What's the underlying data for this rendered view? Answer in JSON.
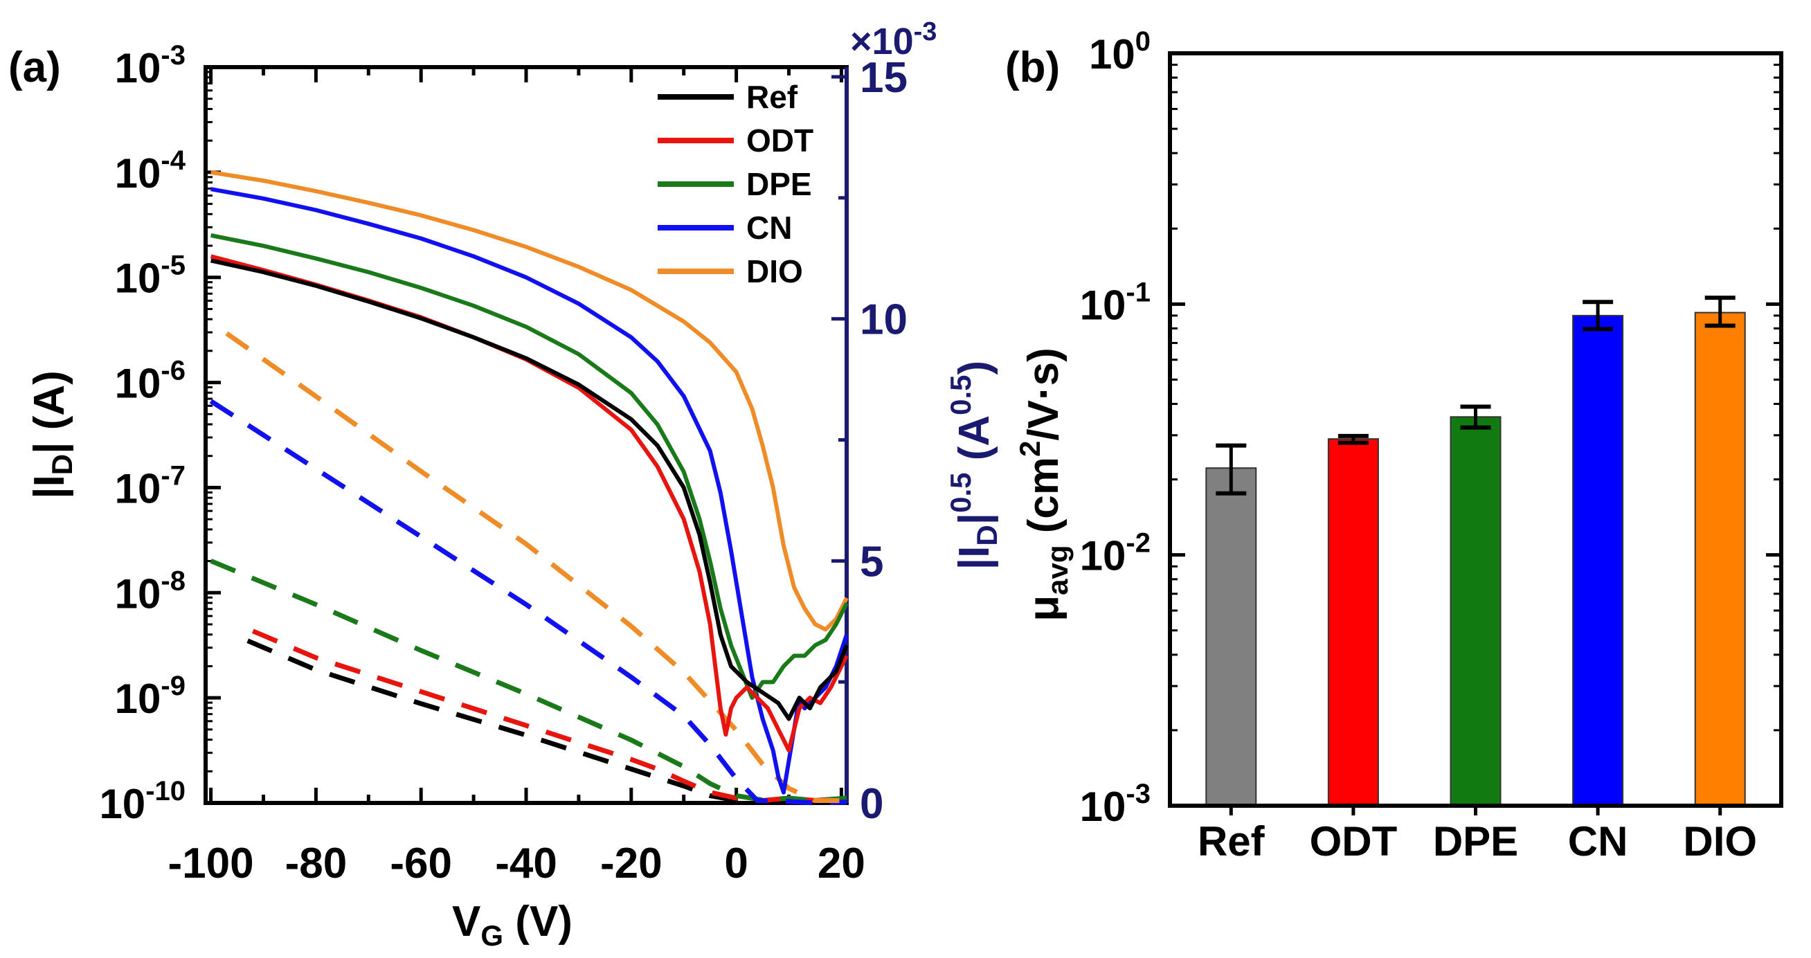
{
  "chart_data": [
    {
      "panel": "(a)",
      "type": "line",
      "xlabel": "V",
      "xlabel_sub": "G",
      "xlabel_unit": "(V)",
      "xlim": [
        -101,
        21
      ],
      "xticks": [
        {
          "v": -100,
          "label": "-100"
        },
        {
          "v": -80,
          "label": "-80"
        },
        {
          "v": -60,
          "label": "-60"
        },
        {
          "v": -40,
          "label": "-40"
        },
        {
          "v": -20,
          "label": "-20"
        },
        {
          "v": 0,
          "label": "0"
        },
        {
          "v": 20,
          "label": "20"
        }
      ],
      "ylabel_left": {
        "pre": "|I",
        "sub": "D",
        "post": "| (A)"
      },
      "ylim_left_log10": [
        -10,
        -3
      ],
      "yticks_left": [
        {
          "b": "10",
          "e": "-3",
          "v": -3
        },
        {
          "b": "10",
          "e": "-4",
          "v": -4
        },
        {
          "b": "10",
          "e": "-5",
          "v": -5
        },
        {
          "b": "10",
          "e": "-6",
          "v": -6
        },
        {
          "b": "10",
          "e": "-7",
          "v": -7
        },
        {
          "b": "10",
          "e": "-8",
          "v": -8
        },
        {
          "b": "10",
          "e": "-9",
          "v": -9
        },
        {
          "b": "10",
          "e": "-10",
          "v": -10
        }
      ],
      "ylabel_right": {
        "pre": "|I",
        "sub": "D",
        "post": "|",
        "sup": "0.5",
        "unit_pre": " (A",
        "unit_sup": "0.5",
        "unit_post": ")"
      },
      "right_multiplier": {
        "base": "×10",
        "exp": "-3"
      },
      "ylim_right": [
        0,
        15.2
      ],
      "yticks_right": [
        {
          "v": 0,
          "label": "0"
        },
        {
          "v": 5,
          "label": "5"
        },
        {
          "v": 10,
          "label": "10"
        },
        {
          "v": 15,
          "label": "15"
        }
      ],
      "legend_position": "top-right",
      "series": [
        {
          "name": "Ref",
          "color": "#000000",
          "transfer_log10": [
            [
              -100,
              -4.84
            ],
            [
              -90,
              -4.95
            ],
            [
              -80,
              -5.08
            ],
            [
              -70,
              -5.23
            ],
            [
              -60,
              -5.39
            ],
            [
              -50,
              -5.57
            ],
            [
              -40,
              -5.77
            ],
            [
              -30,
              -6.02
            ],
            [
              -20,
              -6.35
            ],
            [
              -15,
              -6.6
            ],
            [
              -10,
              -7.0
            ],
            [
              -7,
              -7.45
            ],
            [
              -5,
              -7.9
            ],
            [
              -3,
              -8.4
            ],
            [
              -1,
              -8.7
            ],
            [
              2,
              -8.85
            ],
            [
              5,
              -8.95
            ],
            [
              8,
              -9.05
            ],
            [
              10,
              -9.2
            ],
            [
              12,
              -9.0
            ],
            [
              14,
              -9.1
            ],
            [
              16,
              -8.9
            ],
            [
              19,
              -8.75
            ],
            [
              21,
              -8.5
            ]
          ],
          "sqrt_e3": [
            [
              -93,
              3.35
            ],
            [
              -80,
              2.75
            ],
            [
              -60,
              2.05
            ],
            [
              -40,
              1.4
            ],
            [
              -20,
              0.7
            ],
            [
              -10,
              0.35
            ],
            [
              -5,
              0.15
            ],
            [
              0,
              0.05
            ],
            [
              5,
              0.02
            ],
            [
              10,
              0.08
            ],
            [
              15,
              0.05
            ],
            [
              21,
              0.1
            ]
          ]
        },
        {
          "name": "ODT",
          "color": "#e8140e",
          "transfer_log10": [
            [
              -100,
              -4.8
            ],
            [
              -90,
              -4.93
            ],
            [
              -80,
              -5.07
            ],
            [
              -70,
              -5.22
            ],
            [
              -60,
              -5.38
            ],
            [
              -50,
              -5.57
            ],
            [
              -40,
              -5.78
            ],
            [
              -30,
              -6.05
            ],
            [
              -20,
              -6.45
            ],
            [
              -15,
              -6.8
            ],
            [
              -10,
              -7.3
            ],
            [
              -7,
              -7.8
            ],
            [
              -5,
              -8.3
            ],
            [
              -4,
              -8.7
            ],
            [
              -3,
              -9.1
            ],
            [
              -2,
              -9.35
            ],
            [
              -1,
              -9.1
            ],
            [
              0,
              -9.0
            ],
            [
              2,
              -8.9
            ],
            [
              4,
              -9.0
            ],
            [
              6,
              -9.1
            ],
            [
              8,
              -9.3
            ],
            [
              10,
              -9.5
            ],
            [
              12,
              -9.1
            ],
            [
              14,
              -9.0
            ],
            [
              16,
              -9.05
            ],
            [
              18,
              -8.9
            ],
            [
              21,
              -8.6
            ]
          ],
          "sqrt_e3": [
            [
              -92,
              3.55
            ],
            [
              -80,
              3.0
            ],
            [
              -60,
              2.3
            ],
            [
              -40,
              1.6
            ],
            [
              -20,
              0.9
            ],
            [
              -15,
              0.7
            ],
            [
              -10,
              0.45
            ],
            [
              -5,
              0.22
            ],
            [
              0,
              0.1
            ],
            [
              5,
              0.05
            ],
            [
              10,
              0.1
            ],
            [
              15,
              0.05
            ],
            [
              21,
              0.1
            ]
          ]
        },
        {
          "name": "DPE",
          "color": "#1a7a1a",
          "transfer_log10": [
            [
              -100,
              -4.6
            ],
            [
              -90,
              -4.7
            ],
            [
              -80,
              -4.82
            ],
            [
              -70,
              -4.95
            ],
            [
              -60,
              -5.1
            ],
            [
              -50,
              -5.27
            ],
            [
              -40,
              -5.47
            ],
            [
              -30,
              -5.73
            ],
            [
              -20,
              -6.1
            ],
            [
              -15,
              -6.4
            ],
            [
              -10,
              -6.85
            ],
            [
              -7,
              -7.3
            ],
            [
              -5,
              -7.7
            ],
            [
              -3,
              -8.15
            ],
            [
              -1,
              -8.5
            ],
            [
              1,
              -8.75
            ],
            [
              3,
              -9.0
            ],
            [
              5,
              -8.85
            ],
            [
              7,
              -8.85
            ],
            [
              9,
              -8.7
            ],
            [
              11,
              -8.6
            ],
            [
              13,
              -8.6
            ],
            [
              15,
              -8.5
            ],
            [
              17,
              -8.45
            ],
            [
              19,
              -8.3
            ],
            [
              21,
              -8.1
            ]
          ],
          "sqrt_e3": [
            [
              -100,
              5.0
            ],
            [
              -90,
              4.55
            ],
            [
              -80,
              4.1
            ],
            [
              -60,
              3.15
            ],
            [
              -40,
              2.25
            ],
            [
              -20,
              1.3
            ],
            [
              -10,
              0.75
            ],
            [
              -5,
              0.4
            ],
            [
              0,
              0.15
            ],
            [
              5,
              0.06
            ],
            [
              10,
              0.1
            ],
            [
              15,
              0.05
            ],
            [
              21,
              0.1
            ]
          ]
        },
        {
          "name": "CN",
          "color": "#1010f0",
          "transfer_log10": [
            [
              -100,
              -4.16
            ],
            [
              -90,
              -4.25
            ],
            [
              -80,
              -4.36
            ],
            [
              -70,
              -4.49
            ],
            [
              -60,
              -4.63
            ],
            [
              -50,
              -4.8
            ],
            [
              -40,
              -5.0
            ],
            [
              -30,
              -5.25
            ],
            [
              -20,
              -5.57
            ],
            [
              -15,
              -5.8
            ],
            [
              -10,
              -6.13
            ],
            [
              -5,
              -6.65
            ],
            [
              -3,
              -7.05
            ],
            [
              -1,
              -7.6
            ],
            [
              1,
              -8.2
            ],
            [
              3,
              -8.8
            ],
            [
              5,
              -9.2
            ],
            [
              7,
              -9.5
            ],
            [
              8,
              -9.75
            ],
            [
              9,
              -9.9
            ],
            [
              10,
              -9.6
            ],
            [
              11,
              -9.3
            ],
            [
              12,
              -9.0
            ],
            [
              13,
              -9.1
            ],
            [
              15,
              -9.0
            ],
            [
              17,
              -8.9
            ],
            [
              19,
              -8.7
            ],
            [
              21,
              -8.4
            ]
          ],
          "sqrt_e3": [
            [
              -100,
              8.3
            ],
            [
              -90,
              7.6
            ],
            [
              -80,
              6.9
            ],
            [
              -60,
              5.5
            ],
            [
              -40,
              4.1
            ],
            [
              -20,
              2.6
            ],
            [
              -10,
              1.8
            ],
            [
              -5,
              1.2
            ],
            [
              0,
              0.5
            ],
            [
              4,
              0.05
            ],
            [
              10,
              0.03
            ],
            [
              15,
              0.0
            ],
            [
              21,
              0.02
            ]
          ]
        },
        {
          "name": "DIO",
          "color": "#f08c28",
          "transfer_log10": [
            [
              -100,
              -4.0
            ],
            [
              -90,
              -4.08
            ],
            [
              -80,
              -4.18
            ],
            [
              -70,
              -4.29
            ],
            [
              -60,
              -4.41
            ],
            [
              -50,
              -4.55
            ],
            [
              -40,
              -4.71
            ],
            [
              -30,
              -4.9
            ],
            [
              -20,
              -5.12
            ],
            [
              -10,
              -5.42
            ],
            [
              -5,
              -5.62
            ],
            [
              0,
              -5.9
            ],
            [
              3,
              -6.25
            ],
            [
              5,
              -6.6
            ],
            [
              7,
              -7.0
            ],
            [
              9,
              -7.55
            ],
            [
              11,
              -7.95
            ],
            [
              13,
              -8.15
            ],
            [
              15,
              -8.3
            ],
            [
              17,
              -8.35
            ],
            [
              19,
              -8.25
            ],
            [
              21,
              -8.05
            ]
          ],
          "sqrt_e3": [
            [
              -97,
              9.7
            ],
            [
              -80,
              8.4
            ],
            [
              -60,
              6.85
            ],
            [
              -40,
              5.35
            ],
            [
              -20,
              3.65
            ],
            [
              -10,
              2.7
            ],
            [
              -5,
              2.1
            ],
            [
              0,
              1.5
            ],
            [
              5,
              0.8
            ],
            [
              10,
              0.3
            ],
            [
              15,
              0.05
            ],
            [
              21,
              0.05
            ]
          ]
        }
      ]
    },
    {
      "panel": "(b)",
      "type": "bar",
      "categories": [
        "Ref",
        "ODT",
        "DPE",
        "CN",
        "DIO"
      ],
      "colors": [
        "#808080",
        "#ff0000",
        "#117a11",
        "#0000ff",
        "#ff8000"
      ],
      "values": [
        0.0222,
        0.029,
        0.0355,
        0.09,
        0.0925
      ],
      "errors_low": [
        0.0176,
        0.028,
        0.0322,
        0.0795,
        0.082
      ],
      "errors_high": [
        0.0273,
        0.0298,
        0.039,
        0.102,
        0.106
      ],
      "ylabel": {
        "pre": "μ",
        "sub": "avg",
        "mid": " (cm",
        "sup": "2",
        "post": "/V·s)"
      },
      "ylim_log10": [
        -3,
        0
      ],
      "yticks": [
        {
          "b": "10",
          "e": "0",
          "v": 0
        },
        {
          "b": "10",
          "e": "-1",
          "v": -1
        },
        {
          "b": "10",
          "e": "-2",
          "v": -2
        },
        {
          "b": "10",
          "e": "-3",
          "v": -3
        }
      ],
      "xlabel": ""
    }
  ]
}
